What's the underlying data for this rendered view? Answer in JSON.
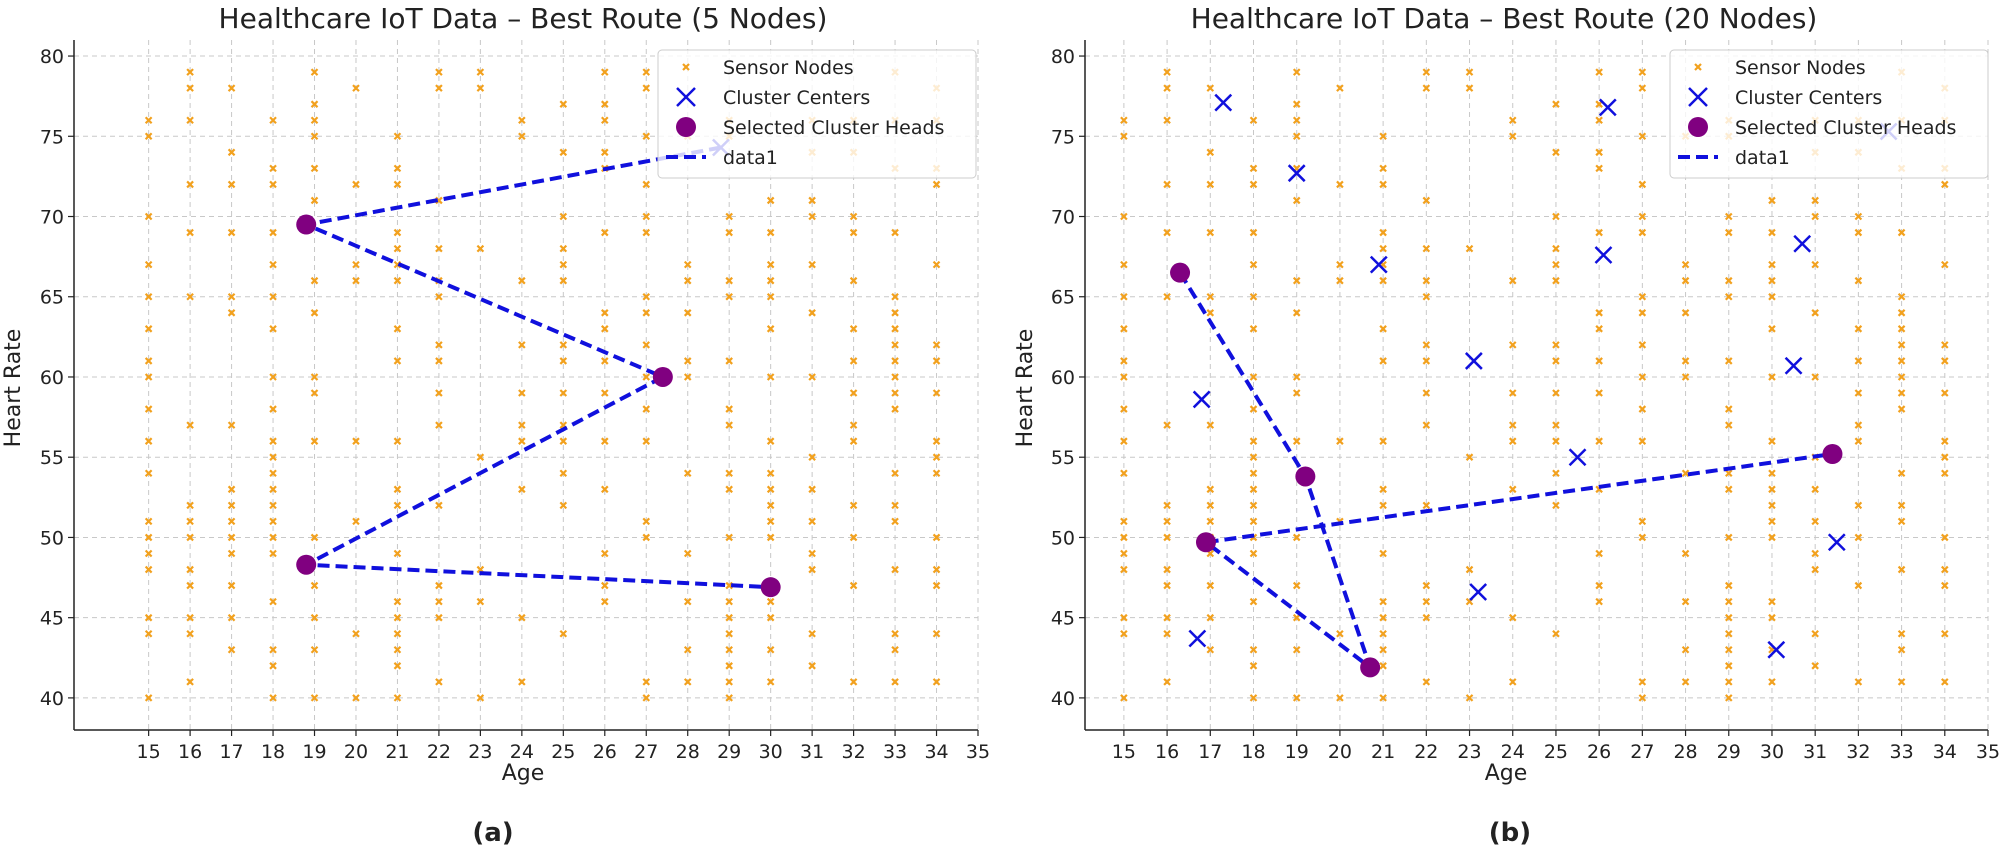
{
  "figure": {
    "panel_labels": [
      "(a)",
      "(b)"
    ]
  },
  "colors": {
    "sensor": "#f2a11e",
    "cluster_center": "#1010dd",
    "cluster_head": "#800080",
    "route": "#1010dd",
    "grid": "#c8c8c8",
    "axis": "#222222",
    "text": "#222222"
  },
  "chart_data": [
    {
      "type": "scatter",
      "title": "Healthcare IoT Data – Best Route (5 Nodes)",
      "panel_label": "(a)",
      "xlabel": "Age",
      "ylabel": "Heart Rate",
      "xlim": [
        13.2,
        35
      ],
      "ylim": [
        38,
        81
      ],
      "xticks": [
        15,
        16,
        17,
        18,
        19,
        20,
        21,
        22,
        23,
        24,
        25,
        26,
        27,
        28,
        29,
        30,
        31,
        32,
        33,
        34,
        35
      ],
      "yticks": [
        40,
        45,
        50,
        55,
        60,
        65,
        70,
        75,
        80
      ],
      "grid": true,
      "legend_position": "top-right",
      "legend": [
        "Sensor Nodes",
        "Cluster Centers",
        "Selected Cluster Heads",
        "data1"
      ],
      "series": [
        {
          "name": "Sensor Nodes",
          "marker": "x-small",
          "points": "sensor_nodes"
        },
        {
          "name": "Cluster Centers",
          "marker": "x-large",
          "points": [
            [
              28.8,
              74.3
            ]
          ]
        },
        {
          "name": "Selected Cluster Heads",
          "marker": "circle",
          "points": [
            [
              18.8,
              69.5
            ],
            [
              27.4,
              60.0
            ],
            [
              18.8,
              48.3
            ],
            [
              30.0,
              46.9
            ]
          ]
        },
        {
          "name": "data1",
          "marker": "dashed-line",
          "points": [
            [
              28.8,
              74.3
            ],
            [
              18.8,
              69.5
            ],
            [
              27.4,
              60.0
            ],
            [
              18.8,
              48.3
            ],
            [
              30.0,
              46.9
            ]
          ]
        }
      ]
    },
    {
      "type": "scatter",
      "title": "Healthcare IoT Data – Best Route (20 Nodes)",
      "panel_label": "(b)",
      "xlabel": "Age",
      "ylabel": "Heart Rate",
      "xlim": [
        14.1,
        35
      ],
      "ylim": [
        38,
        81
      ],
      "xticks": [
        15,
        16,
        17,
        18,
        19,
        20,
        21,
        22,
        23,
        24,
        25,
        26,
        27,
        28,
        29,
        30,
        31,
        32,
        33,
        34,
        35
      ],
      "yticks": [
        40,
        45,
        50,
        55,
        60,
        65,
        70,
        75,
        80
      ],
      "grid": true,
      "legend_position": "top-right",
      "legend": [
        "Sensor Nodes",
        "Cluster Centers",
        "Selected Cluster Heads",
        "data1"
      ],
      "series": [
        {
          "name": "Sensor Nodes",
          "marker": "x-small",
          "points": "sensor_nodes"
        },
        {
          "name": "Cluster Centers",
          "marker": "x-large",
          "points": [
            [
              17.3,
              77.1
            ],
            [
              26.2,
              76.8
            ],
            [
              32.7,
              75.3
            ],
            [
              19.0,
              72.7
            ],
            [
              20.9,
              67.0
            ],
            [
              26.1,
              67.6
            ],
            [
              30.7,
              68.3
            ],
            [
              16.8,
              58.6
            ],
            [
              23.1,
              61.0
            ],
            [
              30.5,
              60.7
            ],
            [
              25.5,
              55.0
            ],
            [
              31.5,
              49.7
            ],
            [
              23.2,
              46.6
            ],
            [
              16.7,
              43.7
            ],
            [
              30.1,
              43.0
            ]
          ]
        },
        {
          "name": "Selected Cluster Heads",
          "marker": "circle",
          "points": [
            [
              16.3,
              66.5
            ],
            [
              19.2,
              53.8
            ],
            [
              16.9,
              49.7
            ],
            [
              20.7,
              41.9
            ],
            [
              31.4,
              55.2
            ]
          ]
        },
        {
          "name": "data1",
          "marker": "dashed-line",
          "points": [
            [
              16.3,
              66.5
            ],
            [
              19.2,
              53.8
            ],
            [
              20.7,
              41.9
            ],
            [
              16.9,
              49.7
            ],
            [
              31.4,
              55.2
            ]
          ]
        }
      ]
    }
  ],
  "sensor_nodes": [
    [
      15,
      40
    ],
    [
      15,
      44
    ],
    [
      15,
      45
    ],
    [
      15,
      48
    ],
    [
      15,
      49
    ],
    [
      15,
      50
    ],
    [
      15,
      51
    ],
    [
      15,
      54
    ],
    [
      15,
      56
    ],
    [
      15,
      58
    ],
    [
      15,
      60
    ],
    [
      15,
      61
    ],
    [
      15,
      63
    ],
    [
      15,
      65
    ],
    [
      15,
      67
    ],
    [
      15,
      70
    ],
    [
      15,
      75
    ],
    [
      15,
      76
    ],
    [
      16,
      41
    ],
    [
      16,
      44
    ],
    [
      16,
      45
    ],
    [
      16,
      47
    ],
    [
      16,
      48
    ],
    [
      16,
      50
    ],
    [
      16,
      51
    ],
    [
      16,
      52
    ],
    [
      16,
      57
    ],
    [
      16,
      65
    ],
    [
      16,
      69
    ],
    [
      16,
      72
    ],
    [
      16,
      76
    ],
    [
      16,
      78
    ],
    [
      16,
      79
    ],
    [
      17,
      43
    ],
    [
      17,
      45
    ],
    [
      17,
      47
    ],
    [
      17,
      49
    ],
    [
      17,
      50
    ],
    [
      17,
      51
    ],
    [
      17,
      52
    ],
    [
      17,
      53
    ],
    [
      17,
      57
    ],
    [
      17,
      64
    ],
    [
      17,
      65
    ],
    [
      17,
      69
    ],
    [
      17,
      72
    ],
    [
      17,
      74
    ],
    [
      17,
      78
    ],
    [
      18,
      40
    ],
    [
      18,
      42
    ],
    [
      18,
      43
    ],
    [
      18,
      46
    ],
    [
      18,
      49
    ],
    [
      18,
      50
    ],
    [
      18,
      51
    ],
    [
      18,
      52
    ],
    [
      18,
      53
    ],
    [
      18,
      54
    ],
    [
      18,
      55
    ],
    [
      18,
      56
    ],
    [
      18,
      58
    ],
    [
      18,
      60
    ],
    [
      18,
      63
    ],
    [
      18,
      65
    ],
    [
      18,
      67
    ],
    [
      18,
      69
    ],
    [
      18,
      72
    ],
    [
      18,
      73
    ],
    [
      18,
      76
    ],
    [
      19,
      40
    ],
    [
      19,
      43
    ],
    [
      19,
      45
    ],
    [
      19,
      47
    ],
    [
      19,
      50
    ],
    [
      19,
      56
    ],
    [
      19,
      59
    ],
    [
      19,
      60
    ],
    [
      19,
      64
    ],
    [
      19,
      66
    ],
    [
      19,
      71
    ],
    [
      19,
      73
    ],
    [
      19,
      75
    ],
    [
      19,
      76
    ],
    [
      19,
      77
    ],
    [
      19,
      79
    ],
    [
      20,
      40
    ],
    [
      20,
      44
    ],
    [
      20,
      51
    ],
    [
      20,
      56
    ],
    [
      20,
      66
    ],
    [
      20,
      67
    ],
    [
      20,
      72
    ],
    [
      20,
      78
    ],
    [
      21,
      40
    ],
    [
      21,
      42
    ],
    [
      21,
      43
    ],
    [
      21,
      44
    ],
    [
      21,
      45
    ],
    [
      21,
      46
    ],
    [
      21,
      49
    ],
    [
      21,
      52
    ],
    [
      21,
      53
    ],
    [
      21,
      56
    ],
    [
      21,
      61
    ],
    [
      21,
      63
    ],
    [
      21,
      66
    ],
    [
      21,
      67
    ],
    [
      21,
      68
    ],
    [
      21,
      69
    ],
    [
      21,
      72
    ],
    [
      21,
      73
    ],
    [
      21,
      75
    ],
    [
      22,
      41
    ],
    [
      22,
      45
    ],
    [
      22,
      46
    ],
    [
      22,
      47
    ],
    [
      22,
      52
    ],
    [
      22,
      57
    ],
    [
      22,
      59
    ],
    [
      22,
      61
    ],
    [
      22,
      62
    ],
    [
      22,
      65
    ],
    [
      22,
      66
    ],
    [
      22,
      68
    ],
    [
      22,
      71
    ],
    [
      22,
      78
    ],
    [
      22,
      79
    ],
    [
      23,
      40
    ],
    [
      23,
      46
    ],
    [
      23,
      48
    ],
    [
      23,
      55
    ],
    [
      23,
      68
    ],
    [
      23,
      78
    ],
    [
      23,
      79
    ],
    [
      24,
      41
    ],
    [
      24,
      45
    ],
    [
      24,
      53
    ],
    [
      24,
      56
    ],
    [
      24,
      57
    ],
    [
      24,
      59
    ],
    [
      24,
      62
    ],
    [
      24,
      66
    ],
    [
      24,
      75
    ],
    [
      24,
      76
    ],
    [
      25,
      44
    ],
    [
      25,
      52
    ],
    [
      25,
      54
    ],
    [
      25,
      56
    ],
    [
      25,
      57
    ],
    [
      25,
      59
    ],
    [
      25,
      61
    ],
    [
      25,
      62
    ],
    [
      25,
      66
    ],
    [
      25,
      67
    ],
    [
      25,
      68
    ],
    [
      25,
      70
    ],
    [
      25,
      74
    ],
    [
      25,
      77
    ],
    [
      26,
      46
    ],
    [
      26,
      47
    ],
    [
      26,
      49
    ],
    [
      26,
      53
    ],
    [
      26,
      56
    ],
    [
      26,
      59
    ],
    [
      26,
      61
    ],
    [
      26,
      63
    ],
    [
      26,
      64
    ],
    [
      26,
      69
    ],
    [
      26,
      73
    ],
    [
      26,
      74
    ],
    [
      26,
      76
    ],
    [
      26,
      77
    ],
    [
      26,
      79
    ],
    [
      27,
      40
    ],
    [
      27,
      41
    ],
    [
      27,
      50
    ],
    [
      27,
      51
    ],
    [
      27,
      56
    ],
    [
      27,
      58
    ],
    [
      27,
      60
    ],
    [
      27,
      62
    ],
    [
      27,
      64
    ],
    [
      27,
      65
    ],
    [
      27,
      69
    ],
    [
      27,
      70
    ],
    [
      27,
      72
    ],
    [
      27,
      75
    ],
    [
      27,
      78
    ],
    [
      27,
      79
    ],
    [
      28,
      41
    ],
    [
      28,
      43
    ],
    [
      28,
      46
    ],
    [
      28,
      49
    ],
    [
      28,
      54
    ],
    [
      28,
      60
    ],
    [
      28,
      61
    ],
    [
      28,
      64
    ],
    [
      28,
      66
    ],
    [
      28,
      67
    ],
    [
      28,
      75
    ],
    [
      29,
      40
    ],
    [
      29,
      41
    ],
    [
      29,
      42
    ],
    [
      29,
      43
    ],
    [
      29,
      44
    ],
    [
      29,
      45
    ],
    [
      29,
      46
    ],
    [
      29,
      47
    ],
    [
      29,
      50
    ],
    [
      29,
      53
    ],
    [
      29,
      54
    ],
    [
      29,
      57
    ],
    [
      29,
      58
    ],
    [
      29,
      61
    ],
    [
      29,
      65
    ],
    [
      29,
      66
    ],
    [
      29,
      69
    ],
    [
      29,
      70
    ],
    [
      29,
      75
    ],
    [
      29,
      76
    ],
    [
      30,
      41
    ],
    [
      30,
      43
    ],
    [
      30,
      45
    ],
    [
      30,
      46
    ],
    [
      30,
      50
    ],
    [
      30,
      51
    ],
    [
      30,
      52
    ],
    [
      30,
      53
    ],
    [
      30,
      54
    ],
    [
      30,
      56
    ],
    [
      30,
      60
    ],
    [
      30,
      63
    ],
    [
      30,
      65
    ],
    [
      30,
      66
    ],
    [
      30,
      67
    ],
    [
      30,
      69
    ],
    [
      30,
      71
    ],
    [
      31,
      42
    ],
    [
      31,
      44
    ],
    [
      31,
      48
    ],
    [
      31,
      49
    ],
    [
      31,
      51
    ],
    [
      31,
      53
    ],
    [
      31,
      55
    ],
    [
      31,
      60
    ],
    [
      31,
      64
    ],
    [
      31,
      67
    ],
    [
      31,
      70
    ],
    [
      31,
      71
    ],
    [
      31,
      74
    ],
    [
      31,
      76
    ],
    [
      32,
      41
    ],
    [
      32,
      47
    ],
    [
      32,
      50
    ],
    [
      32,
      52
    ],
    [
      32,
      56
    ],
    [
      32,
      57
    ],
    [
      32,
      59
    ],
    [
      32,
      61
    ],
    [
      32,
      63
    ],
    [
      32,
      66
    ],
    [
      32,
      69
    ],
    [
      32,
      70
    ],
    [
      32,
      74
    ],
    [
      32,
      76
    ],
    [
      33,
      41
    ],
    [
      33,
      43
    ],
    [
      33,
      44
    ],
    [
      33,
      48
    ],
    [
      33,
      51
    ],
    [
      33,
      52
    ],
    [
      33,
      54
    ],
    [
      33,
      58
    ],
    [
      33,
      59
    ],
    [
      33,
      60
    ],
    [
      33,
      61
    ],
    [
      33,
      62
    ],
    [
      33,
      63
    ],
    [
      33,
      64
    ],
    [
      33,
      65
    ],
    [
      33,
      69
    ],
    [
      33,
      73
    ],
    [
      33,
      76
    ],
    [
      33,
      79
    ],
    [
      34,
      41
    ],
    [
      34,
      44
    ],
    [
      34,
      47
    ],
    [
      34,
      48
    ],
    [
      34,
      50
    ],
    [
      34,
      54
    ],
    [
      34,
      55
    ],
    [
      34,
      56
    ],
    [
      34,
      59
    ],
    [
      34,
      61
    ],
    [
      34,
      62
    ],
    [
      34,
      67
    ],
    [
      34,
      72
    ],
    [
      34,
      73
    ],
    [
      34,
      76
    ],
    [
      34,
      78
    ]
  ]
}
